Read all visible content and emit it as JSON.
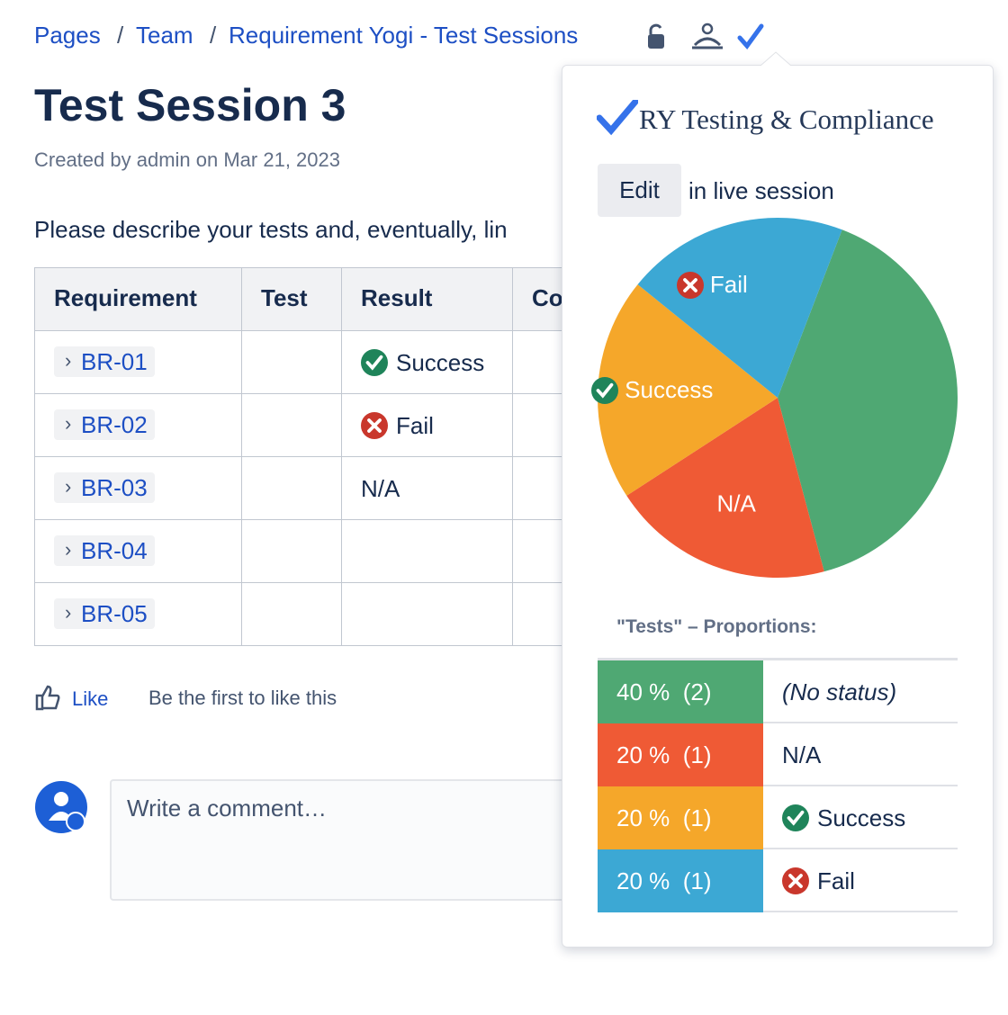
{
  "breadcrumb": [
    "Pages",
    "Team",
    "Requirement Yogi - Test Sessions"
  ],
  "title": "Test Session 3",
  "byline": "Created by admin on Mar 21, 2023",
  "intro": "Please describe your tests and, eventually, lin",
  "table": {
    "header": [
      "Requirement",
      "Test",
      "Result",
      "Co"
    ],
    "rows": [
      [
        "BR-01",
        null,
        "Success"
      ],
      [
        "BR-02",
        null,
        "Fail"
      ],
      [
        "BR-03",
        null,
        "N/A"
      ],
      [
        "BR-04",
        null,
        null
      ],
      [
        "BR-05",
        null,
        null
      ]
    ]
  },
  "like": {
    "button": "Like",
    "text": "Be the first to like this"
  },
  "comment": {
    "placeholder": "Write a comment…"
  },
  "popup": {
    "brand": "RY Testing & Compliance",
    "edit": "Edit",
    "edit_suffix": "in live session",
    "proportions_title": "\"Tests\" – Proportions:"
  },
  "chart_data": {
    "type": "pie",
    "categories": [
      "(No status)",
      "N/A",
      "Success",
      "Fail"
    ],
    "values": [
      40,
      20,
      20,
      20
    ],
    "value_labels": [
      "40 %  (2)",
      "20 %  (1)",
      "20 %  (1)",
      "20 %  (1)"
    ],
    "colors": [
      "#4fa873",
      "#ef5a35",
      "#f5a72a",
      "#3ca8d4"
    ]
  }
}
